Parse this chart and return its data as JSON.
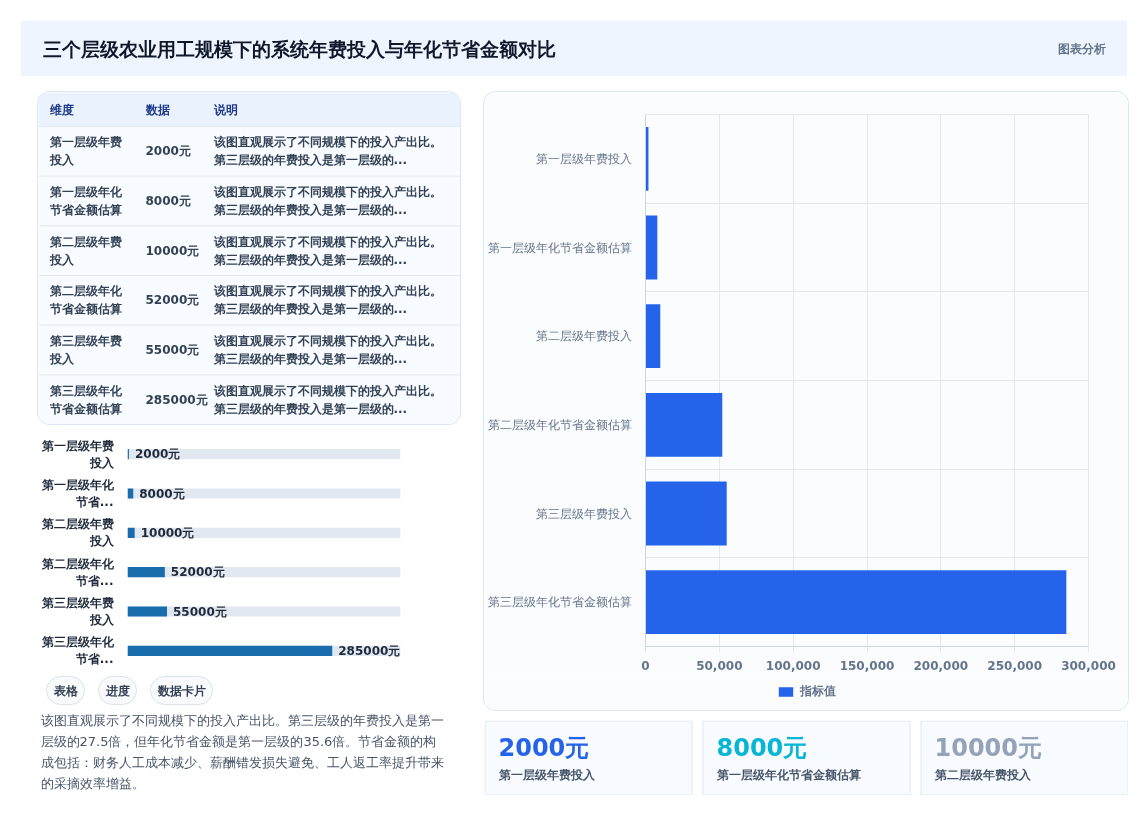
{
  "chart_data": [
    {
      "type": "other",
      "title": "三个层级农业用工规模下的系统年费投入与年化节省金额对比",
      "annotations": [
        "图表分析"
      ]
    },
    {
      "type": "bar",
      "orientation": "horizontal",
      "categories": [
        "第一层级年费投入",
        "第一层级年化节省金额估算",
        "第二层级年费投入",
        "第二层级年化节省金额估算",
        "第三层级年费投入",
        "第三层级年化节省金额估算"
      ],
      "series": [
        {
          "name": "指标值",
          "color": "#2563eb",
          "values": [
            2000,
            8000,
            10000,
            52000,
            55000,
            285000
          ]
        }
      ],
      "xlim": [
        0,
        300000
      ],
      "xticks": [
        0,
        {
          "value": 50000,
          "label": "50,000"
        },
        {
          "value": 100000,
          "label": "100,000"
        },
        {
          "value": 150000,
          "label": "150,000"
        },
        {
          "value": 200000,
          "label": "200,000"
        },
        {
          "value": 250000,
          "label": "250,000"
        },
        {
          "value": 300000,
          "label": "300,000"
        }
      ],
      "grid": true,
      "legend": "bottom"
    },
    {
      "type": "other",
      "categories": [
        "第一层级年费投入",
        "第一层级年化节省金额估算",
        "第二层级年费投入",
        "第二层级年化节省金额估算",
        "第三层级年费投入",
        "第三层级年化节省金额估算"
      ],
      "value_labels": [
        "2000元",
        "8000元",
        "10000元",
        "52000元",
        "55000元",
        "285000元"
      ],
      "annotations": [
        "维度",
        "数据",
        "说明",
        "该图直观展示了不同规模下的投入产出比。第三层级的年费投入是第一层级的...",
        "该图直观展示了不同规模下的投入产出比。第三层级的年费投入是第一层级的...",
        "该图直观展示了不同规模下的投入产出比。第三层级的年费投入是第一层级的...",
        "该图直观展示了不同规模下的投入产出比。第三层级的年费投入是第一层级的...",
        "该图直观展示了不同规模下的投入产出比。第三层级的年费投入是第一层级的...",
        "该图直观展示了不同规模下的投入产出比。第三层级的年费投入是第一层级的..."
      ]
    },
    {
      "type": "bar",
      "orientation": "horizontal",
      "categories": [
        "第一层级年费投入",
        "第一层级年化节省...",
        "第二层级年费投入",
        "第二层级年化节省...",
        "第三层级年费投入",
        "第三层级年化节省..."
      ],
      "values": [
        2000,
        8000,
        10000,
        52000,
        55000,
        285000
      ],
      "value_labels": [
        "2000元",
        "8000元",
        "10000元",
        "52000元",
        "55000元",
        "285000元"
      ],
      "color": "#1a6dad",
      "xlim": [
        0,
        380000
      ],
      "tick_labels": "y",
      "annotations": [
        "表格",
        "进度",
        "数据卡片",
        "该图直观展示了不同规模下的投入产出比。第三层级的年费投入是第一层级的27.5倍，但年化节省金额是第一层级的35.6倍。节省金额的构成包括：财务人工成本减少、薪酬错发损失避免、工人返工率提升带来的采摘效率增益。"
      ]
    },
    {
      "type": "other",
      "categories": [
        "第一层级年费投入",
        "第一层级年化节省金额估算",
        "第二层级年费投入"
      ],
      "value_labels": [
        "2000元",
        "8000元",
        "10000元"
      ]
    }
  ]
}
